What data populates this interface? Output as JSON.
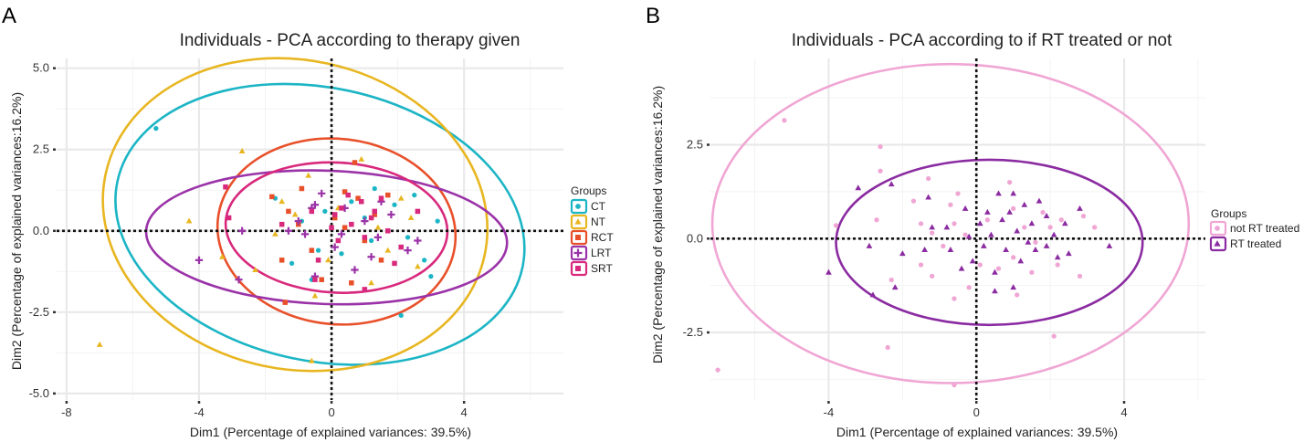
{
  "chart_data": [
    {
      "panel_label": "A",
      "type": "scatter",
      "title": "Individuals - PCA according to therapy given",
      "xlabel": "Dim1 (Percentage of explained variances: 39.5%)",
      "ylabel": "Dim2 (Percentage of explained variances:16.2%)",
      "xlim": [
        -8.3,
        7.0
      ],
      "ylim": [
        -5.2,
        5.3
      ],
      "x_ticks": [
        -8,
        -4,
        0,
        4
      ],
      "x_tick_labels": [
        "-8",
        "-4",
        "0",
        "4"
      ],
      "y_ticks": [
        5.0,
        2.5,
        0.0,
        -2.5,
        -5.0
      ],
      "y_tick_labels": [
        "5.0",
        "2.5",
        "0.0",
        "-2.5",
        "-5.0"
      ],
      "grid": true,
      "reference_lines": {
        "x": 0,
        "y": 0
      },
      "legend": {
        "title": "Groups",
        "position": "right"
      },
      "series": [
        {
          "name": "CT",
          "color": "#1cb5c5",
          "shape": "circle",
          "points": [
            [
              -5.3,
              3.15
            ],
            [
              -1.7,
              1.0
            ],
            [
              -1.5,
              0.2
            ],
            [
              -1.2,
              -1.0
            ],
            [
              -0.9,
              0.3
            ],
            [
              -0.6,
              -1.5
            ],
            [
              -0.2,
              0.6
            ],
            [
              0.3,
              -0.7
            ],
            [
              0.6,
              0.9
            ],
            [
              1.0,
              0.4
            ],
            [
              1.2,
              -0.3
            ],
            [
              1.9,
              0.8
            ],
            [
              2.3,
              -0.2
            ],
            [
              2.5,
              1.1
            ],
            [
              2.8,
              -0.9
            ],
            [
              3.2,
              0.3
            ],
            [
              2.1,
              -2.6
            ],
            [
              3.0,
              -1.4
            ],
            [
              1.3,
              1.3
            ],
            [
              -0.4,
              -0.6
            ]
          ],
          "ellipse": {
            "cx": -0.35,
            "cy": 0.2,
            "rx": 6.25,
            "ry": 4.2,
            "angle_deg": -12
          }
        },
        {
          "name": "NT",
          "color": "#e8b621",
          "shape": "triangle",
          "points": [
            [
              -7.0,
              -3.5
            ],
            [
              -4.3,
              0.3
            ],
            [
              -3.3,
              -0.8
            ],
            [
              -2.7,
              2.45
            ],
            [
              -2.3,
              -1.2
            ],
            [
              -1.7,
              -0.1
            ],
            [
              -1.1,
              0.5
            ],
            [
              -0.7,
              1.7
            ],
            [
              -0.5,
              -2.0
            ],
            [
              -0.1,
              -0.9
            ],
            [
              0.2,
              0.7
            ],
            [
              0.9,
              2.2
            ],
            [
              1.4,
              0.1
            ],
            [
              1.7,
              -0.6
            ],
            [
              2.1,
              1.0
            ],
            [
              2.4,
              0.4
            ],
            [
              -0.6,
              -4.0
            ],
            [
              1.2,
              -1.6
            ],
            [
              -1.5,
              0.9
            ],
            [
              2.6,
              -1.1
            ]
          ],
          "ellipse": {
            "cx": -1.1,
            "cy": 0.5,
            "rx": 5.85,
            "ry": 4.75,
            "angle_deg": -12
          }
        },
        {
          "name": "RCT",
          "color": "#e8502a",
          "shape": "square",
          "points": [
            [
              -1.8,
              1.05
            ],
            [
              -1.3,
              0.6
            ],
            [
              -1.5,
              -0.9
            ],
            [
              -1.4,
              -2.2
            ],
            [
              -1.0,
              0.2
            ],
            [
              -0.6,
              -0.6
            ],
            [
              0.4,
              1.2
            ],
            [
              0.4,
              0.1
            ],
            [
              0.8,
              1.0
            ],
            [
              1.0,
              -0.3
            ],
            [
              1.3,
              0.5
            ],
            [
              1.5,
              -0.9
            ],
            [
              0.6,
              -1.6
            ],
            [
              -0.3,
              -1.5
            ],
            [
              0.7,
              2.1
            ],
            [
              -0.9,
              1.3
            ],
            [
              0.1,
              0.4
            ],
            [
              1.7,
              1.1
            ]
          ],
          "ellipse": {
            "cx": 0.15,
            "cy": -0.02,
            "rx": 3.6,
            "ry": 2.85,
            "angle_deg": -6
          }
        },
        {
          "name": "LRT",
          "color": "#9b33a8",
          "shape": "plus",
          "points": [
            [
              -4.0,
              -0.9
            ],
            [
              -2.8,
              -1.5
            ],
            [
              -2.7,
              0.0
            ],
            [
              -1.3,
              0.0
            ],
            [
              -1.0,
              0.3
            ],
            [
              -0.8,
              -0.1
            ],
            [
              -0.5,
              0.8
            ],
            [
              -0.3,
              1.15
            ],
            [
              0.1,
              -0.5
            ],
            [
              0.4,
              0.7
            ],
            [
              0.7,
              -1.2
            ],
            [
              1.0,
              0.3
            ],
            [
              1.4,
              -0.2
            ],
            [
              1.8,
              0.5
            ],
            [
              2.3,
              -0.6
            ],
            [
              2.6,
              -0.3
            ],
            [
              -0.5,
              -1.4
            ],
            [
              1.5,
              0.9
            ],
            [
              0.3,
              -0.1
            ],
            [
              1.2,
              -0.8
            ],
            [
              -0.6,
              0.7
            ]
          ],
          "ellipse": {
            "cx": -0.15,
            "cy": -0.2,
            "rx": 5.45,
            "ry": 2.05,
            "angle_deg": -2
          }
        },
        {
          "name": "SRT",
          "color": "#d8297d",
          "shape": "square",
          "points": [
            [
              -3.2,
              1.35
            ],
            [
              -3.1,
              0.4
            ],
            [
              -1.5,
              0.2
            ],
            [
              -0.6,
              0.6
            ],
            [
              -0.4,
              -0.9
            ],
            [
              0.1,
              0.5
            ],
            [
              0.2,
              -0.3
            ],
            [
              0.3,
              0.7
            ],
            [
              0.6,
              0.2
            ],
            [
              0.9,
              0.9
            ],
            [
              1.0,
              -0.2
            ],
            [
              1.2,
              0.4
            ],
            [
              1.5,
              1.0
            ],
            [
              1.7,
              0.0
            ],
            [
              2.1,
              -0.5
            ],
            [
              2.6,
              0.6
            ],
            [
              1.0,
              -1.8
            ],
            [
              -0.5,
              -1.5
            ],
            [
              0.5,
              1.1
            ],
            [
              1.9,
              -1.0
            ],
            [
              0.0,
              0.1
            ],
            [
              1.3,
              0.6
            ]
          ],
          "ellipse": {
            "cx": 0.15,
            "cy": 0.1,
            "rx": 3.35,
            "ry": 2.0,
            "angle_deg": -3
          }
        }
      ]
    },
    {
      "panel_label": "B",
      "type": "scatter",
      "title": "Individuals - PCA according to if RT treated or not",
      "xlabel": "Dim1 (Percentage of explained variances: 39.5%)",
      "ylabel": "Dim2 (Percentage of explained variances:16.2%)",
      "xlim": [
        -7.2,
        6.2
      ],
      "ylim": [
        -4.3,
        4.8
      ],
      "x_ticks": [
        -4,
        0,
        4
      ],
      "x_tick_labels": [
        "-4",
        "0",
        "4"
      ],
      "y_ticks": [
        2.5,
        0.0,
        -2.5
      ],
      "y_tick_labels": [
        "2.5",
        "0.0",
        "-2.5"
      ],
      "grid": true,
      "reference_lines": {
        "x": 0,
        "y": 0
      },
      "legend": {
        "title": "Groups",
        "position": "right"
      },
      "series": [
        {
          "name": "not RT treated",
          "color": "#f0a6d4",
          "shape": "circle",
          "points": [
            [
              -7.0,
              -3.5
            ],
            [
              -5.2,
              3.15
            ],
            [
              -2.6,
              2.45
            ],
            [
              -2.6,
              1.8
            ],
            [
              -3.8,
              0.35
            ],
            [
              -2.7,
              0.5
            ],
            [
              -2.3,
              -1.1
            ],
            [
              -2.4,
              -2.9
            ],
            [
              -1.5,
              0.4
            ],
            [
              -1.5,
              -0.7
            ],
            [
              -1.3,
              1.6
            ],
            [
              -1.2,
              0.15
            ],
            [
              -1.2,
              -1.0
            ],
            [
              -0.7,
              0.9
            ],
            [
              -0.6,
              0.4
            ],
            [
              -0.6,
              -1.6
            ],
            [
              -0.6,
              -3.9
            ],
            [
              -0.3,
              0.1
            ],
            [
              -0.2,
              -1.3
            ],
            [
              0.1,
              -0.7
            ],
            [
              -0.5,
              1.2
            ],
            [
              0.3,
              0.5
            ],
            [
              0.9,
              1.5
            ],
            [
              1.0,
              0.8
            ],
            [
              1.0,
              -0.5
            ],
            [
              1.1,
              -1.5
            ],
            [
              1.3,
              0.3
            ],
            [
              1.5,
              -0.9
            ],
            [
              1.6,
              -0.1
            ],
            [
              2.0,
              0.3
            ],
            [
              2.2,
              -0.7
            ],
            [
              2.1,
              -2.6
            ],
            [
              2.3,
              0.5
            ],
            [
              2.8,
              -1.0
            ],
            [
              3.2,
              0.3
            ],
            [
              2.9,
              0.6
            ],
            [
              -0.9,
              -0.2
            ],
            [
              0.6,
              -0.8
            ],
            [
              -1.7,
              1.0
            ],
            [
              1.8,
              0.7
            ]
          ],
          "ellipse": {
            "cx": -0.7,
            "cy": 0.4,
            "rx": 6.45,
            "ry": 4.25,
            "angle_deg": 0
          }
        },
        {
          "name": "RT treated",
          "color": "#8b2ba1",
          "shape": "triangle",
          "points": [
            [
              -4.0,
              -0.9
            ],
            [
              -3.2,
              1.35
            ],
            [
              -2.8,
              -1.5
            ],
            [
              -2.3,
              1.45
            ],
            [
              -2.0,
              -0.4
            ],
            [
              -2.2,
              -1.3
            ],
            [
              -2.9,
              -0.2
            ],
            [
              -1.4,
              -0.3
            ],
            [
              -1.2,
              0.3
            ],
            [
              -0.8,
              0.3
            ],
            [
              -0.7,
              -0.3
            ],
            [
              -0.3,
              0.8
            ],
            [
              -0.1,
              -0.6
            ],
            [
              0.1,
              0.4
            ],
            [
              0.2,
              -0.2
            ],
            [
              0.3,
              0.7
            ],
            [
              0.4,
              0.1
            ],
            [
              0.5,
              -1.4
            ],
            [
              0.6,
              1.2
            ],
            [
              0.7,
              0.5
            ],
            [
              0.8,
              -0.3
            ],
            [
              1.0,
              1.2
            ],
            [
              1.1,
              0.2
            ],
            [
              1.2,
              -0.6
            ],
            [
              1.3,
              0.9
            ],
            [
              1.5,
              0.4
            ],
            [
              1.6,
              -0.3
            ],
            [
              1.7,
              1.0
            ],
            [
              1.9,
              -0.2
            ],
            [
              2.1,
              0.1
            ],
            [
              2.2,
              -0.5
            ],
            [
              2.5,
              -0.4
            ],
            [
              2.8,
              0.8
            ],
            [
              3.6,
              -0.2
            ],
            [
              1.0,
              -1.3
            ],
            [
              1.9,
              0.6
            ],
            [
              0.5,
              -0.9
            ],
            [
              -0.4,
              -0.8
            ],
            [
              2.4,
              0.4
            ],
            [
              0.9,
              0.7
            ],
            [
              -0.2,
              0.05
            ],
            [
              1.4,
              -0.1
            ],
            [
              -1.3,
              1.1
            ]
          ],
          "ellipse": {
            "cx": 0.35,
            "cy": -0.1,
            "rx": 4.15,
            "ry": 2.2,
            "angle_deg": 0
          }
        }
      ]
    }
  ]
}
